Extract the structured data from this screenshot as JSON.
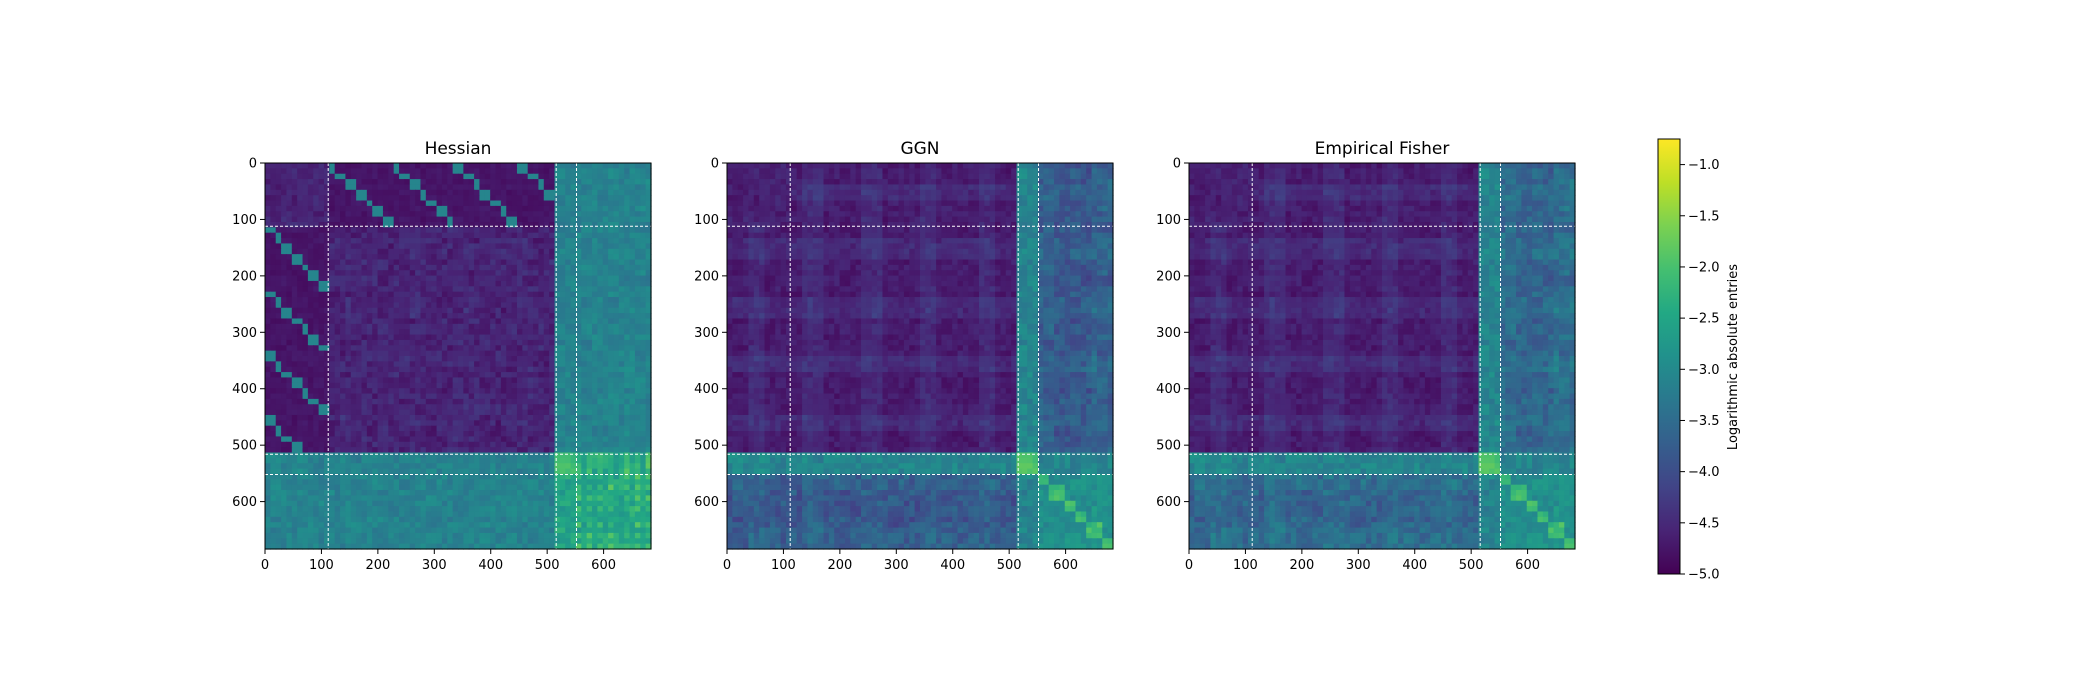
{
  "chart_data": [
    {
      "type": "heatmap",
      "title": "Hessian",
      "x_ticks": [
        0,
        100,
        200,
        300,
        400,
        500,
        600
      ],
      "y_ticks": [
        0,
        100,
        200,
        300,
        400,
        500,
        600
      ],
      "xlim": [
        0,
        684
      ],
      "ylim": [
        684,
        0
      ],
      "block_boundaries": [
        112,
        516,
        552
      ],
      "value_range": [
        -5.0,
        -0.75
      ],
      "pattern": "hessian"
    },
    {
      "type": "heatmap",
      "title": "GGN",
      "x_ticks": [
        0,
        100,
        200,
        300,
        400,
        500,
        600
      ],
      "y_ticks": [
        0,
        100,
        200,
        300,
        400,
        500,
        600
      ],
      "xlim": [
        0,
        684
      ],
      "ylim": [
        684,
        0
      ],
      "block_boundaries": [
        112,
        516,
        552
      ],
      "value_range": [
        -5.0,
        -0.75
      ],
      "pattern": "ggn"
    },
    {
      "type": "heatmap",
      "title": "Empirical Fisher",
      "x_ticks": [
        0,
        100,
        200,
        300,
        400,
        500,
        600
      ],
      "y_ticks": [
        0,
        100,
        200,
        300,
        400,
        500,
        600
      ],
      "xlim": [
        0,
        684
      ],
      "ylim": [
        684,
        0
      ],
      "block_boundaries": [
        112,
        516,
        552
      ],
      "value_range": [
        -5.0,
        -0.75
      ],
      "pattern": "fisher"
    }
  ],
  "colorbar": {
    "label": "Logarithmic absolute entries",
    "ticks": [
      -1.0,
      -1.5,
      -2.0,
      -2.5,
      -3.0,
      -3.5,
      -4.0,
      -4.5,
      -5.0
    ],
    "range": [
      -5.0,
      -0.75
    ],
    "colormap": "viridis"
  }
}
